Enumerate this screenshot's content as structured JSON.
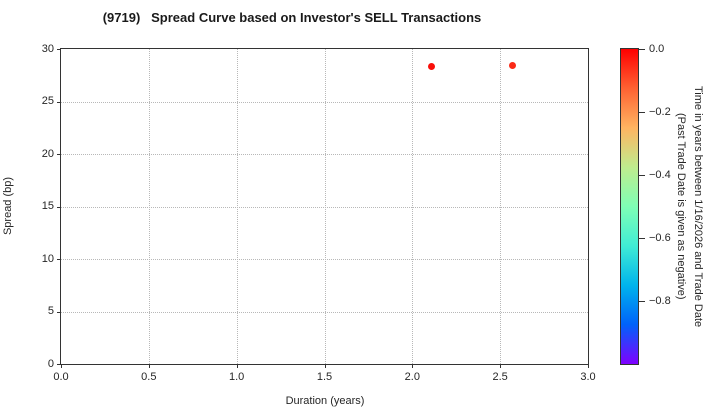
{
  "colors": {
    "background": "#ffffff",
    "text": "#262626",
    "axis": "#333333",
    "grid": "#b8b8b8",
    "point_red": "#f90f0a"
  },
  "chart_data": {
    "type": "scatter",
    "title": "(9719)   Spread Curve based on Investor's SELL Transactions",
    "xlabel": "Duration (years)",
    "ylabel": "Spread (bp)",
    "xlim": [
      0.0,
      3.0
    ],
    "ylim": [
      0,
      30
    ],
    "xticks": [
      0.0,
      0.5,
      1.0,
      1.5,
      2.0,
      2.5,
      3.0
    ],
    "xtick_labels": [
      "0.0",
      "0.5",
      "1.0",
      "1.5",
      "2.0",
      "2.5",
      "3.0"
    ],
    "yticks": [
      0,
      5,
      10,
      15,
      20,
      25,
      30
    ],
    "ytick_labels": [
      "0",
      "5",
      "10",
      "15",
      "20",
      "25",
      "30"
    ],
    "grid": true,
    "grid_style": "dotted",
    "legend": "none",
    "points": [
      {
        "x": 2.11,
        "y": 28.3,
        "time": 0.0,
        "color": "#f90f0a"
      },
      {
        "x": 2.57,
        "y": 28.4,
        "time": -0.02,
        "color": "#fa2a17"
      }
    ],
    "colorbar": {
      "label_lines": [
        "Time in years between 1/16/2026 and Trade Date",
        "(Past Trade Date is given as negative)"
      ],
      "range": [
        0.0,
        -1.0
      ],
      "tick_values": [
        0.0,
        -0.2,
        -0.4,
        -0.6,
        -0.8
      ],
      "tick_labels": [
        "0.0",
        "−0.2",
        "−0.4",
        "−0.6",
        "−0.8"
      ],
      "colormap": "rainbow",
      "gradient_stops": [
        {
          "pos": 0,
          "color": "#ff0000"
        },
        {
          "pos": 12.5,
          "color": "#ff6232"
        },
        {
          "pos": 25,
          "color": "#ffb461"
        },
        {
          "pos": 37.5,
          "color": "#bfec8e"
        },
        {
          "pos": 50,
          "color": "#7fffb5"
        },
        {
          "pos": 62.5,
          "color": "#40ecd4"
        },
        {
          "pos": 75,
          "color": "#00b4ec"
        },
        {
          "pos": 87.5,
          "color": "#0062fa"
        },
        {
          "pos": 100,
          "color": "#7f00ff"
        }
      ]
    }
  }
}
